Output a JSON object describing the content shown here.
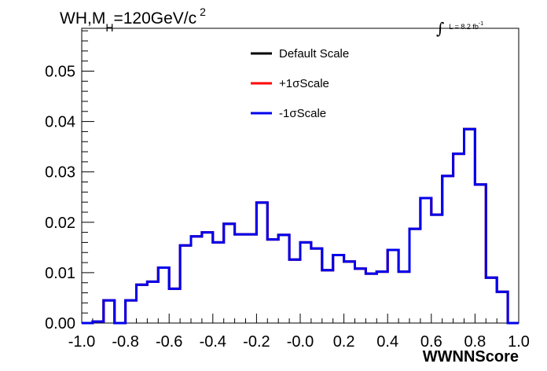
{
  "title": {
    "prefix": "WH,M",
    "subscript": "H",
    "mid": "=120GeV/c",
    "superscript": "2"
  },
  "luminosity": {
    "integral": "∫",
    "text": "L = 8.2 fb",
    "exponent": "-1"
  },
  "chart_data": {
    "type": "line",
    "style": "step-histogram",
    "xlabel": "WWNNScore",
    "ylabel": "",
    "xlim": [
      -1.0,
      1.0
    ],
    "ylim": [
      0.0,
      0.0585
    ],
    "x_ticks": [
      "-1.0",
      "-0.8",
      "-0.6",
      "-0.4",
      "-0.2",
      "-0.0",
      "0.2",
      "0.4",
      "0.6",
      "0.8",
      "1.0"
    ],
    "y_ticks": [
      "0.00",
      "0.01",
      "0.02",
      "0.03",
      "0.04",
      "0.05"
    ],
    "bin_edges": [
      -1.0,
      -0.95,
      -0.9,
      -0.85,
      -0.8,
      -0.75,
      -0.7,
      -0.65,
      -0.6,
      -0.55,
      -0.5,
      -0.45,
      -0.4,
      -0.35,
      -0.3,
      -0.25,
      -0.2,
      -0.15,
      -0.1,
      -0.05,
      0.0,
      0.05,
      0.1,
      0.15,
      0.2,
      0.25,
      0.3,
      0.35,
      0.4,
      0.45,
      0.5,
      0.55,
      0.6,
      0.65,
      0.7,
      0.75,
      0.8,
      0.85,
      0.9,
      0.95,
      1.0
    ],
    "legend_position": "top-center",
    "series": [
      {
        "name": "Default Scale",
        "color": "#000000",
        "values": [
          0.0,
          0.0003,
          0.0045,
          0.0,
          0.0045,
          0.0076,
          0.0082,
          0.011,
          0.0068,
          0.0154,
          0.0172,
          0.018,
          0.016,
          0.0197,
          0.0176,
          0.0176,
          0.0239,
          0.0166,
          0.0175,
          0.0126,
          0.016,
          0.0148,
          0.0105,
          0.0135,
          0.0122,
          0.0108,
          0.0098,
          0.0102,
          0.0145,
          0.0102,
          0.0187,
          0.0248,
          0.0215,
          0.0292,
          0.0336,
          0.0385,
          0.0275,
          0.009,
          0.0062,
          0.0
        ]
      },
      {
        "name": "+1σScale",
        "color": "#ff0000",
        "values": [
          0.0,
          0.0003,
          0.0045,
          0.0,
          0.0045,
          0.0076,
          0.0082,
          0.011,
          0.0068,
          0.0154,
          0.0172,
          0.018,
          0.016,
          0.0197,
          0.0176,
          0.0176,
          0.0239,
          0.0166,
          0.0175,
          0.0126,
          0.016,
          0.0148,
          0.0105,
          0.0135,
          0.0122,
          0.0108,
          0.0098,
          0.0102,
          0.0145,
          0.0102,
          0.0187,
          0.0248,
          0.0215,
          0.0292,
          0.0336,
          0.0385,
          0.0275,
          0.009,
          0.0062,
          0.0
        ]
      },
      {
        "name": "-1σScale",
        "color": "#0000ee",
        "values": [
          0.0,
          0.0003,
          0.0045,
          0.0,
          0.0045,
          0.0076,
          0.0082,
          0.011,
          0.0068,
          0.0154,
          0.0172,
          0.018,
          0.016,
          0.0197,
          0.0176,
          0.0176,
          0.0239,
          0.0166,
          0.0175,
          0.0126,
          0.016,
          0.0148,
          0.0105,
          0.0135,
          0.0122,
          0.0108,
          0.0098,
          0.0102,
          0.0145,
          0.0102,
          0.0187,
          0.0248,
          0.0215,
          0.0292,
          0.0336,
          0.0385,
          0.0275,
          0.009,
          0.0062,
          0.0
        ]
      }
    ]
  }
}
